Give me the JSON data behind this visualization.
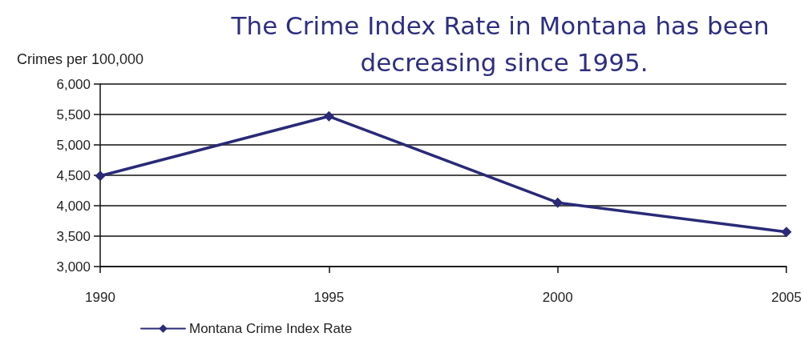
{
  "chart_data": {
    "type": "line",
    "title": "The Crime Index Rate in Montana has been decreasing since 1995.",
    "ylabel": "Crimes per 100,000",
    "categories": [
      "1990",
      "1995",
      "2000",
      "2005"
    ],
    "series": [
      {
        "name": "Montana Crime Index Rate",
        "color": "#2a2a78",
        "values": [
          4490,
          5470,
          4050,
          3570
        ]
      }
    ],
    "ylim": [
      3000,
      6000
    ],
    "yticks": [
      {
        "value": 3000,
        "label": "3,000"
      },
      {
        "value": 3500,
        "label": "3,500"
      },
      {
        "value": 4000,
        "label": "4,000"
      },
      {
        "value": 4500,
        "label": "4,500"
      },
      {
        "value": 5000,
        "label": "5,000"
      },
      {
        "value": 5500,
        "label": "5,500"
      },
      {
        "value": 6000,
        "label": "6,000"
      }
    ],
    "grid": "y",
    "legend": "bottom left",
    "marker": "diamond",
    "line_style": "solid"
  }
}
